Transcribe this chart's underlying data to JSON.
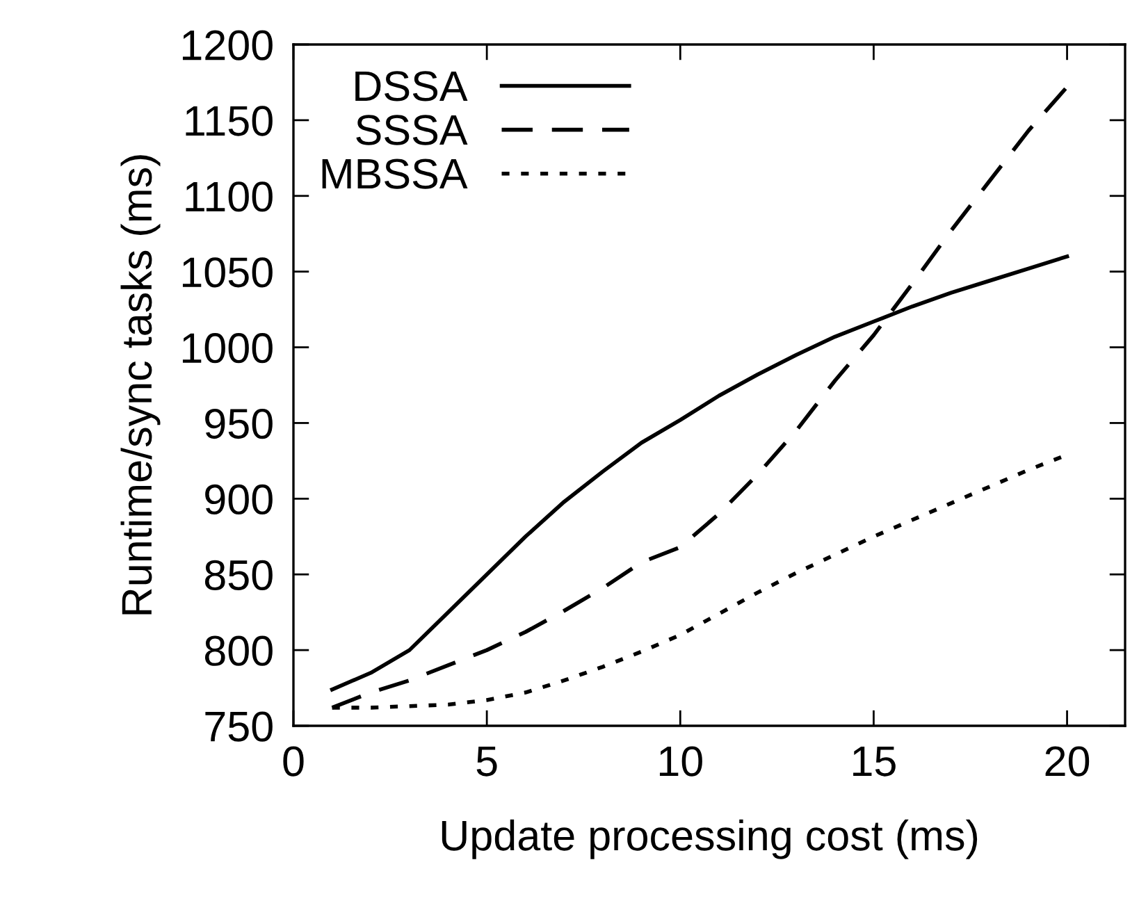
{
  "chart_data": {
    "type": "line",
    "xlabel": "Update processing cost (ms)",
    "ylabel": "Runtime/sync tasks (ms)",
    "x": [
      1,
      2,
      3,
      4,
      5,
      6,
      7,
      8,
      9,
      10,
      11,
      12,
      13,
      14,
      15,
      16,
      17,
      18,
      19,
      20
    ],
    "series": [
      {
        "name": "DSSA",
        "color": "#000000",
        "line_style": "solid",
        "values": [
          774,
          785,
          800,
          825,
          850,
          875,
          898,
          918,
          937,
          952,
          968,
          982,
          995,
          1007,
          1017,
          1027,
          1036,
          1044,
          1052,
          1060
        ]
      },
      {
        "name": "SSSA",
        "color": "#000000",
        "line_style": "dashed",
        "values": [
          762,
          772,
          780,
          790,
          800,
          812,
          826,
          841,
          858,
          868,
          890,
          916,
          945,
          978,
          1008,
          1042,
          1077,
          1110,
          1143,
          1172
        ]
      },
      {
        "name": "MBSSA",
        "color": "#000000",
        "line_style": "dotted",
        "values": [
          762,
          762,
          763,
          764,
          767,
          772,
          780,
          789,
          799,
          810,
          824,
          838,
          851,
          863,
          875,
          886,
          897,
          908,
          919,
          929
        ]
      }
    ],
    "xlim": [
      0,
      21.5
    ],
    "xticks": [
      0,
      5,
      10,
      15,
      20
    ],
    "ylim": [
      750,
      1200
    ],
    "yticks": [
      750,
      800,
      850,
      900,
      950,
      1000,
      1050,
      1100,
      1150,
      1200
    ],
    "grid": false,
    "legend": "top left",
    "marker": "none"
  }
}
